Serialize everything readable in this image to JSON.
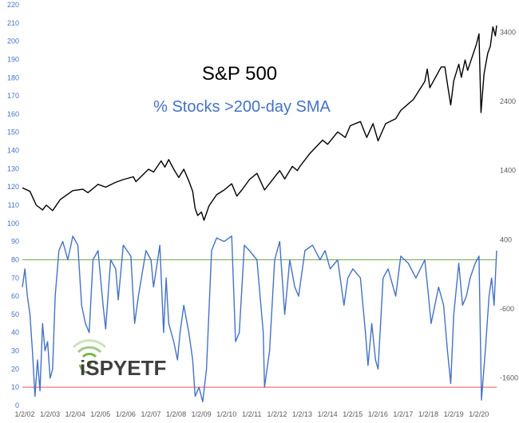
{
  "chart_data": {
    "type": "line",
    "title": "S&P 500",
    "subtitle": "% Stocks >200-day SMA",
    "left_axis": {
      "ylim": [
        0,
        220
      ],
      "ticks": [
        0,
        10,
        20,
        30,
        40,
        50,
        60,
        70,
        80,
        90,
        100,
        110,
        120,
        130,
        140,
        150,
        160,
        170,
        180,
        190,
        200,
        210,
        220
      ]
    },
    "right_axis": {
      "ylim": [
        -2000,
        3800
      ],
      "ticks": [
        "3400",
        "2400",
        "1400",
        "400",
        "-600",
        "-1600"
      ],
      "tick_values": [
        3400,
        2400,
        1400,
        400,
        -600,
        -1600
      ]
    },
    "x_ticks": [
      "1/2/02",
      "1/2/03",
      "1/2/04",
      "1/2/05",
      "1/2/06",
      "1/2/07",
      "1/2/08",
      "1/2/09",
      "1/2/10",
      "1/2/11",
      "1/2/12",
      "1/2/13",
      "1/2/14",
      "1/2/15",
      "1/2/16",
      "1/2/17",
      "1/2/18",
      "1/2/19",
      "1/2/20"
    ],
    "xlim": [
      2002.0,
      2020.8
    ],
    "reference_lines": [
      {
        "value": 80,
        "color": "#70ad47"
      },
      {
        "value": 10,
        "color": "#ff5050"
      }
    ],
    "series": [
      {
        "axis": "right",
        "color": "#000000",
        "points": [
          [
            2002.0,
            1150
          ],
          [
            2002.3,
            1100
          ],
          [
            2002.55,
            900
          ],
          [
            2002.8,
            830
          ],
          [
            2002.95,
            900
          ],
          [
            2003.2,
            820
          ],
          [
            2003.5,
            980
          ],
          [
            2004.0,
            1110
          ],
          [
            2004.4,
            1130
          ],
          [
            2004.6,
            1080
          ],
          [
            2005.0,
            1200
          ],
          [
            2005.3,
            1160
          ],
          [
            2005.7,
            1230
          ],
          [
            2006.0,
            1270
          ],
          [
            2006.4,
            1310
          ],
          [
            2006.5,
            1240
          ],
          [
            2007.0,
            1420
          ],
          [
            2007.2,
            1380
          ],
          [
            2007.5,
            1540
          ],
          [
            2007.65,
            1450
          ],
          [
            2007.8,
            1560
          ],
          [
            2008.0,
            1420
          ],
          [
            2008.2,
            1300
          ],
          [
            2008.4,
            1420
          ],
          [
            2008.6,
            1250
          ],
          [
            2008.75,
            1100
          ],
          [
            2008.85,
            850
          ],
          [
            2008.95,
            750
          ],
          [
            2009.1,
            800
          ],
          [
            2009.2,
            680
          ],
          [
            2009.4,
            890
          ],
          [
            2009.7,
            1050
          ],
          [
            2010.0,
            1120
          ],
          [
            2010.3,
            1210
          ],
          [
            2010.5,
            1030
          ],
          [
            2010.7,
            1120
          ],
          [
            2011.0,
            1270
          ],
          [
            2011.3,
            1360
          ],
          [
            2011.6,
            1120
          ],
          [
            2011.9,
            1260
          ],
          [
            2012.2,
            1400
          ],
          [
            2012.4,
            1280
          ],
          [
            2012.7,
            1460
          ],
          [
            2012.9,
            1400
          ],
          [
            2013.0,
            1460
          ],
          [
            2013.4,
            1650
          ],
          [
            2013.9,
            1840
          ],
          [
            2014.1,
            1780
          ],
          [
            2014.5,
            1960
          ],
          [
            2014.8,
            1880
          ],
          [
            2015.0,
            2050
          ],
          [
            2015.4,
            2110
          ],
          [
            2015.65,
            1880
          ],
          [
            2015.9,
            2080
          ],
          [
            2016.1,
            1830
          ],
          [
            2016.4,
            2080
          ],
          [
            2016.8,
            2150
          ],
          [
            2017.0,
            2270
          ],
          [
            2017.5,
            2430
          ],
          [
            2017.95,
            2690
          ],
          [
            2018.05,
            2870
          ],
          [
            2018.15,
            2600
          ],
          [
            2018.6,
            2900
          ],
          [
            2018.75,
            2900
          ],
          [
            2018.85,
            2650
          ],
          [
            2018.98,
            2350
          ],
          [
            2019.1,
            2700
          ],
          [
            2019.3,
            2940
          ],
          [
            2019.4,
            2750
          ],
          [
            2019.55,
            3000
          ],
          [
            2019.65,
            2850
          ],
          [
            2020.0,
            3230
          ],
          [
            2020.1,
            3380
          ],
          [
            2020.18,
            2240
          ],
          [
            2020.3,
            2800
          ],
          [
            2020.45,
            3100
          ],
          [
            2020.55,
            3200
          ],
          [
            2020.65,
            3480
          ],
          [
            2020.75,
            3350
          ],
          [
            2020.8,
            3500
          ]
        ]
      },
      {
        "axis": "left",
        "color": "#4472c4",
        "points": [
          [
            2002.0,
            65
          ],
          [
            2002.1,
            75
          ],
          [
            2002.2,
            60
          ],
          [
            2002.3,
            50
          ],
          [
            2002.4,
            30
          ],
          [
            2002.5,
            5
          ],
          [
            2002.6,
            25
          ],
          [
            2002.7,
            8
          ],
          [
            2002.8,
            45
          ],
          [
            2002.9,
            30
          ],
          [
            2003.0,
            35
          ],
          [
            2003.1,
            15
          ],
          [
            2003.2,
            20
          ],
          [
            2003.3,
            60
          ],
          [
            2003.45,
            85
          ],
          [
            2003.6,
            90
          ],
          [
            2003.8,
            80
          ],
          [
            2004.0,
            93
          ],
          [
            2004.2,
            88
          ],
          [
            2004.35,
            55
          ],
          [
            2004.5,
            45
          ],
          [
            2004.65,
            40
          ],
          [
            2004.8,
            80
          ],
          [
            2005.0,
            85
          ],
          [
            2005.2,
            55
          ],
          [
            2005.3,
            42
          ],
          [
            2005.5,
            80
          ],
          [
            2005.7,
            75
          ],
          [
            2005.8,
            58
          ],
          [
            2006.0,
            88
          ],
          [
            2006.3,
            82
          ],
          [
            2006.45,
            45
          ],
          [
            2006.6,
            60
          ],
          [
            2006.9,
            85
          ],
          [
            2007.1,
            80
          ],
          [
            2007.2,
            65
          ],
          [
            2007.45,
            88
          ],
          [
            2007.6,
            40
          ],
          [
            2007.7,
            70
          ],
          [
            2007.8,
            45
          ],
          [
            2008.0,
            35
          ],
          [
            2008.15,
            25
          ],
          [
            2008.25,
            40
          ],
          [
            2008.4,
            55
          ],
          [
            2008.6,
            40
          ],
          [
            2008.75,
            25
          ],
          [
            2008.85,
            5
          ],
          [
            2009.0,
            10
          ],
          [
            2009.15,
            2
          ],
          [
            2009.3,
            20
          ],
          [
            2009.5,
            85
          ],
          [
            2009.7,
            92
          ],
          [
            2010.0,
            90
          ],
          [
            2010.3,
            93
          ],
          [
            2010.45,
            35
          ],
          [
            2010.6,
            40
          ],
          [
            2010.8,
            88
          ],
          [
            2011.0,
            85
          ],
          [
            2011.3,
            80
          ],
          [
            2011.55,
            40
          ],
          [
            2011.6,
            10
          ],
          [
            2011.8,
            30
          ],
          [
            2012.0,
            80
          ],
          [
            2012.2,
            90
          ],
          [
            2012.4,
            50
          ],
          [
            2012.6,
            80
          ],
          [
            2012.8,
            65
          ],
          [
            2012.95,
            60
          ],
          [
            2013.2,
            85
          ],
          [
            2013.5,
            88
          ],
          [
            2013.8,
            80
          ],
          [
            2014.0,
            85
          ],
          [
            2014.2,
            75
          ],
          [
            2014.5,
            80
          ],
          [
            2014.75,
            55
          ],
          [
            2014.9,
            70
          ],
          [
            2015.1,
            75
          ],
          [
            2015.4,
            70
          ],
          [
            2015.6,
            40
          ],
          [
            2015.7,
            22
          ],
          [
            2015.85,
            45
          ],
          [
            2016.0,
            25
          ],
          [
            2016.1,
            20
          ],
          [
            2016.3,
            70
          ],
          [
            2016.5,
            75
          ],
          [
            2016.8,
            60
          ],
          [
            2017.0,
            82
          ],
          [
            2017.3,
            78
          ],
          [
            2017.6,
            70
          ],
          [
            2017.95,
            80
          ],
          [
            2018.1,
            60
          ],
          [
            2018.2,
            45
          ],
          [
            2018.5,
            65
          ],
          [
            2018.7,
            55
          ],
          [
            2018.85,
            30
          ],
          [
            2018.98,
            12
          ],
          [
            2019.1,
            50
          ],
          [
            2019.3,
            78
          ],
          [
            2019.45,
            55
          ],
          [
            2019.6,
            60
          ],
          [
            2019.75,
            70
          ],
          [
            2019.95,
            78
          ],
          [
            2020.1,
            82
          ],
          [
            2020.2,
            3
          ],
          [
            2020.35,
            30
          ],
          [
            2020.5,
            60
          ],
          [
            2020.6,
            70
          ],
          [
            2020.7,
            55
          ],
          [
            2020.8,
            85
          ]
        ]
      }
    ]
  },
  "logo": {
    "text": "iSPYETF"
  }
}
